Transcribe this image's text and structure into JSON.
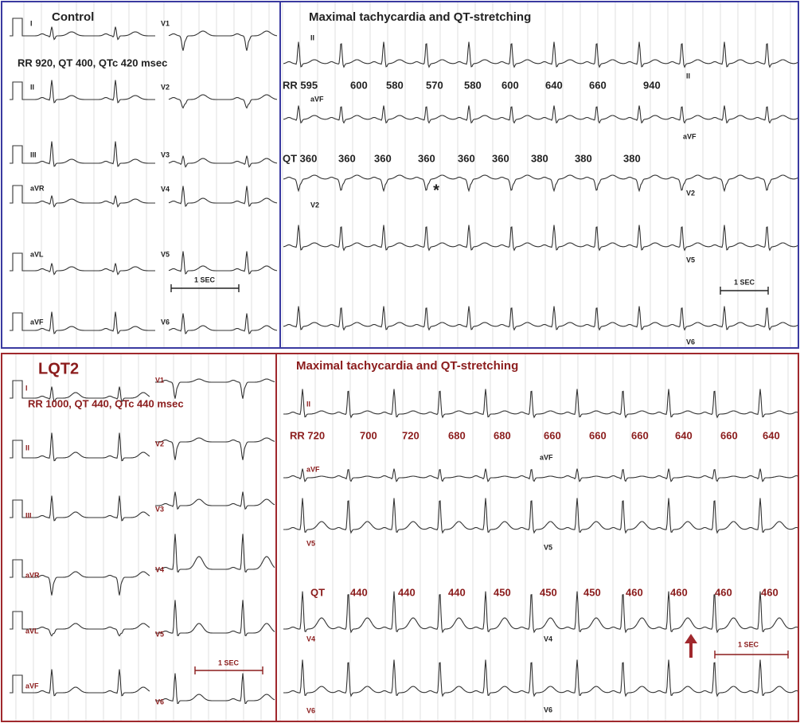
{
  "control": {
    "title": "Control",
    "intervals": "RR 920, QT 400, QTc 420 msec",
    "limb_leads": [
      "I",
      "II",
      "III",
      "aVR",
      "aVL",
      "aVF"
    ],
    "chest_leads": [
      "V1",
      "V2",
      "V3",
      "V4",
      "V5",
      "V6"
    ],
    "scale": "1 SEC"
  },
  "control_tachy": {
    "title": "Maximal tachycardia and QT-stretching",
    "leads": [
      "II",
      "aVF",
      "V2"
    ],
    "side_leads": [
      "II",
      "aVF",
      "V2",
      "V5",
      "V6"
    ],
    "rr": [
      "RR 595",
      "600",
      "580",
      "570",
      "580",
      "600",
      "640",
      "660",
      "940"
    ],
    "qt": [
      "QT 360",
      "360",
      "360",
      "360",
      "360",
      "360",
      "380",
      "380",
      "380"
    ],
    "marker": "*",
    "scale": "1 SEC"
  },
  "lqt2": {
    "title": "LQT2",
    "intervals": "RR 1000, QT 440, QTc 440 msec",
    "limb_leads": [
      "I",
      "II",
      "III",
      "aVR",
      "aVL",
      "aVF"
    ],
    "chest_leads": [
      "V1",
      "V2",
      "V3",
      "V4",
      "V5",
      "V6"
    ],
    "scale": "1 SEC"
  },
  "lqt2_tachy": {
    "title": "Maximal tachycardia and QT-stretching",
    "leads": [
      "II",
      "aVF",
      "V5",
      "V4",
      "V6"
    ],
    "side_leads": [
      "aVF",
      "V5",
      "V4",
      "V6"
    ],
    "rr": [
      "RR 720",
      "700",
      "720",
      "680",
      "680",
      "660",
      "660",
      "660",
      "640",
      "660",
      "640"
    ],
    "qt_label": "QT",
    "qt": [
      "440",
      "440",
      "440",
      "450",
      "450",
      "450",
      "460",
      "460",
      "460",
      "460"
    ],
    "scale": "1 SEC"
  }
}
